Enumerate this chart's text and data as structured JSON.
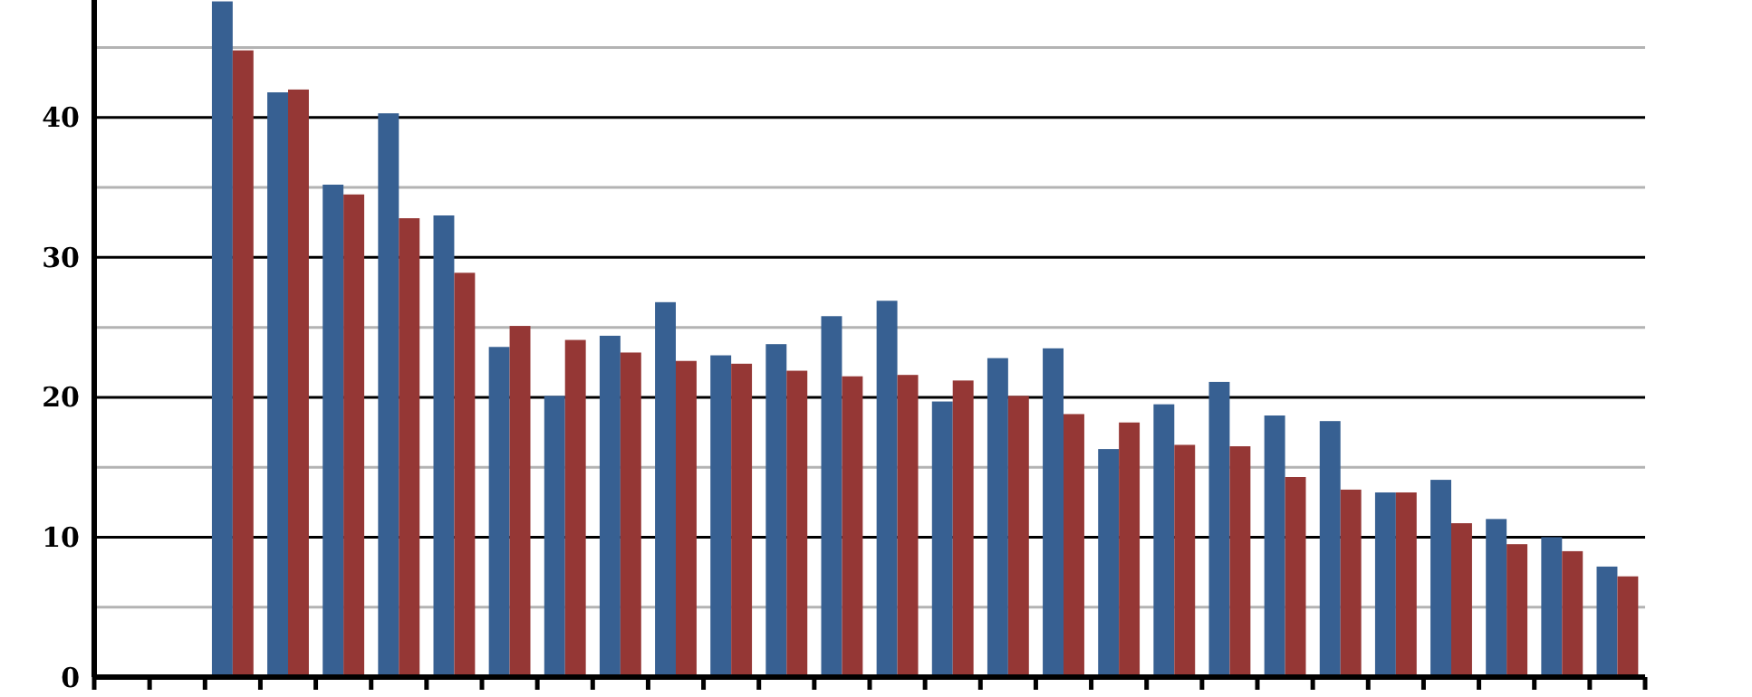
{
  "chart_data": {
    "type": "bar",
    "categories": [
      null,
      null,
      null,
      null,
      null,
      null,
      null,
      null,
      null,
      null,
      null,
      null,
      null,
      null,
      null,
      null,
      null,
      null,
      null,
      null,
      null,
      null,
      null,
      null,
      null,
      null,
      null,
      null
    ],
    "series": [
      {
        "color": "#376092",
        "values": [
          null,
          null,
          48.3,
          41.8,
          35.2,
          40.3,
          33.0,
          23.6,
          20.1,
          24.4,
          26.8,
          23.0,
          23.8,
          25.8,
          26.9,
          19.7,
          22.8,
          23.5,
          16.3,
          19.5,
          21.1,
          18.7,
          18.3,
          13.2,
          14.1,
          11.3,
          10.0,
          7.9
        ]
      },
      {
        "color": "#953735",
        "values": [
          null,
          null,
          44.8,
          42.0,
          34.5,
          32.8,
          28.9,
          25.1,
          24.1,
          23.2,
          22.6,
          22.4,
          21.9,
          21.5,
          21.6,
          21.2,
          20.1,
          18.8,
          18.2,
          16.6,
          16.5,
          14.3,
          13.4,
          13.2,
          11.0,
          9.5,
          9.0,
          7.2
        ]
      }
    ],
    "ylim": [
      0,
      48.4
    ],
    "yticks": [
      0,
      {
        "value": 5,
        "label": null
      },
      10,
      {
        "value": 15,
        "label": null
      },
      20,
      {
        "value": 25,
        "label": null
      },
      30,
      {
        "value": 35,
        "label": null
      },
      40,
      {
        "value": 45,
        "label": null
      }
    ],
    "grid": true
  }
}
